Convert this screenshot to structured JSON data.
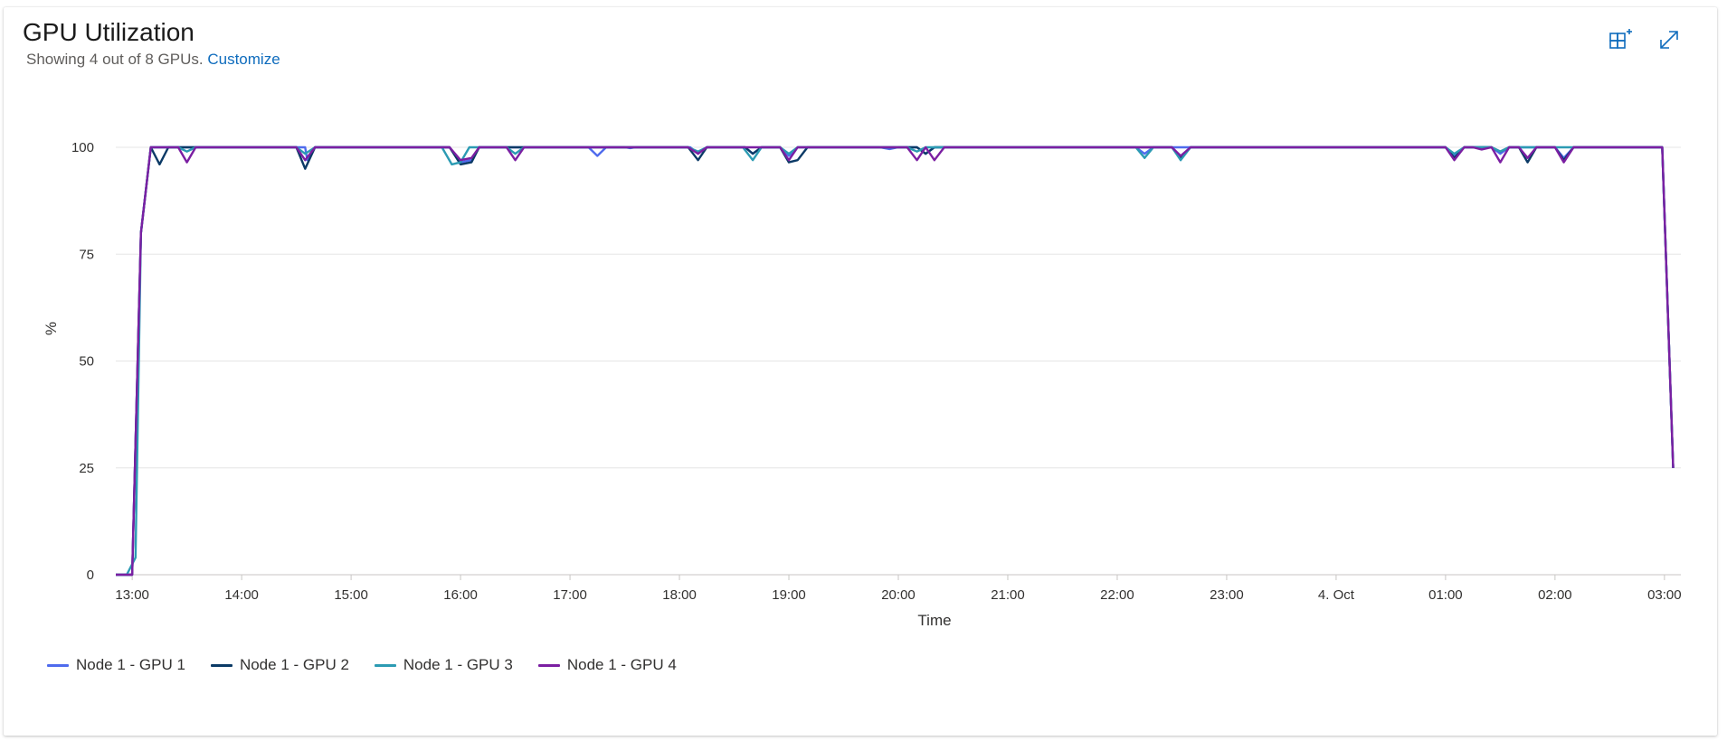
{
  "header": {
    "title": "GPU Utilization",
    "subtitle": "Showing 4 out of 8 GPUs.",
    "customize_label": "Customize",
    "icons": [
      "pin-to-dashboard-icon",
      "expand-icon"
    ]
  },
  "chart_data": {
    "type": "line",
    "xlabel": "Time",
    "ylabel": "%",
    "ylim": [
      0,
      100
    ],
    "yticks": [
      0,
      25,
      50,
      75,
      100
    ],
    "xlim": [
      12.85,
      27.15
    ],
    "xticks": [
      {
        "value": 13,
        "label": "13:00"
      },
      {
        "value": 14,
        "label": "14:00"
      },
      {
        "value": 15,
        "label": "15:00"
      },
      {
        "value": 16,
        "label": "16:00"
      },
      {
        "value": 17,
        "label": "17:00"
      },
      {
        "value": 18,
        "label": "18:00"
      },
      {
        "value": 19,
        "label": "19:00"
      },
      {
        "value": 20,
        "label": "20:00"
      },
      {
        "value": 21,
        "label": "21:00"
      },
      {
        "value": 22,
        "label": "22:00"
      },
      {
        "value": 23,
        "label": "23:00"
      },
      {
        "value": 24,
        "label": "4. Oct"
      },
      {
        "value": 25,
        "label": "01:00"
      },
      {
        "value": 26,
        "label": "02:00"
      },
      {
        "value": 27,
        "label": "03:00"
      }
    ],
    "grid": true,
    "legend_position": "bottom-left",
    "series": [
      {
        "name": "Node 1 - GPU 1",
        "color": "#4f6bed",
        "points": [
          [
            12.85,
            0
          ],
          [
            13.0,
            0
          ],
          [
            13.08,
            80
          ],
          [
            13.17,
            100
          ],
          [
            14.58,
            100
          ],
          [
            14.6,
            97
          ],
          [
            14.67,
            100
          ],
          [
            15.9,
            100
          ],
          [
            16.0,
            96.5
          ],
          [
            16.1,
            97
          ],
          [
            16.17,
            100
          ],
          [
            17.17,
            100
          ],
          [
            17.25,
            98
          ],
          [
            17.33,
            100
          ],
          [
            17.5,
            100
          ],
          [
            17.55,
            99.8
          ],
          [
            17.6,
            100
          ],
          [
            18.1,
            100
          ],
          [
            18.17,
            98.5
          ],
          [
            18.25,
            100
          ],
          [
            18.6,
            100
          ],
          [
            18.67,
            98.5
          ],
          [
            18.75,
            100
          ],
          [
            18.92,
            100
          ],
          [
            19.0,
            98
          ],
          [
            19.08,
            100
          ],
          [
            19.83,
            100
          ],
          [
            19.92,
            99.6
          ],
          [
            20.0,
            100
          ],
          [
            20.17,
            100
          ],
          [
            20.25,
            98.5
          ],
          [
            20.33,
            100
          ],
          [
            22.17,
            100
          ],
          [
            22.25,
            98.5
          ],
          [
            22.33,
            100
          ],
          [
            25.0,
            100
          ],
          [
            25.08,
            98
          ],
          [
            25.17,
            100
          ],
          [
            25.42,
            100
          ],
          [
            25.5,
            98.5
          ],
          [
            25.58,
            100
          ],
          [
            26.0,
            100
          ],
          [
            26.08,
            97.5
          ],
          [
            26.17,
            100
          ],
          [
            26.98,
            100
          ],
          [
            27.08,
            25
          ]
        ]
      },
      {
        "name": "Node 1 - GPU 2",
        "color": "#0b3a66",
        "points": [
          [
            12.85,
            0
          ],
          [
            13.0,
            0
          ],
          [
            13.08,
            80
          ],
          [
            13.17,
            100
          ],
          [
            13.25,
            96
          ],
          [
            13.33,
            100
          ],
          [
            14.5,
            100
          ],
          [
            14.58,
            95
          ],
          [
            14.67,
            100
          ],
          [
            15.9,
            100
          ],
          [
            16.0,
            96
          ],
          [
            16.1,
            96.5
          ],
          [
            16.17,
            100
          ],
          [
            18.08,
            100
          ],
          [
            18.17,
            97
          ],
          [
            18.25,
            100
          ],
          [
            18.6,
            100
          ],
          [
            18.67,
            98.5
          ],
          [
            18.75,
            100
          ],
          [
            18.92,
            100
          ],
          [
            19.0,
            96.5
          ],
          [
            19.08,
            97
          ],
          [
            19.17,
            100
          ],
          [
            20.17,
            100
          ],
          [
            20.25,
            98.5
          ],
          [
            20.33,
            100
          ],
          [
            22.5,
            100
          ],
          [
            22.58,
            97.5
          ],
          [
            22.67,
            100
          ],
          [
            25.0,
            100
          ],
          [
            25.08,
            97.5
          ],
          [
            25.17,
            100
          ],
          [
            25.42,
            100
          ],
          [
            25.5,
            99
          ],
          [
            25.58,
            100
          ],
          [
            25.67,
            100
          ],
          [
            25.75,
            96.5
          ],
          [
            25.83,
            100
          ],
          [
            26.0,
            100
          ],
          [
            26.08,
            97
          ],
          [
            26.17,
            100
          ],
          [
            26.98,
            100
          ],
          [
            27.08,
            25
          ]
        ]
      },
      {
        "name": "Node 1 - GPU 3",
        "color": "#2c9bb3",
        "points": [
          [
            12.85,
            0
          ],
          [
            12.95,
            0
          ],
          [
            13.03,
            4
          ],
          [
            13.08,
            80
          ],
          [
            13.17,
            100
          ],
          [
            13.42,
            100
          ],
          [
            13.5,
            99
          ],
          [
            13.58,
            100
          ],
          [
            14.5,
            100
          ],
          [
            14.58,
            98.5
          ],
          [
            14.67,
            100
          ],
          [
            15.83,
            100
          ],
          [
            15.92,
            96
          ],
          [
            16.0,
            96.5
          ],
          [
            16.08,
            100
          ],
          [
            16.42,
            100
          ],
          [
            16.5,
            98.5
          ],
          [
            16.58,
            100
          ],
          [
            18.08,
            100
          ],
          [
            18.17,
            99
          ],
          [
            18.25,
            100
          ],
          [
            18.58,
            100
          ],
          [
            18.67,
            97
          ],
          [
            18.75,
            100
          ],
          [
            18.92,
            100
          ],
          [
            19.0,
            98.5
          ],
          [
            19.08,
            100
          ],
          [
            20.08,
            100
          ],
          [
            20.17,
            99
          ],
          [
            20.25,
            100
          ],
          [
            22.17,
            100
          ],
          [
            22.25,
            97.5
          ],
          [
            22.33,
            100
          ],
          [
            22.5,
            100
          ],
          [
            22.58,
            97
          ],
          [
            22.67,
            100
          ],
          [
            25.0,
            100
          ],
          [
            25.08,
            98.5
          ],
          [
            25.17,
            100
          ],
          [
            25.42,
            100
          ],
          [
            25.5,
            99
          ],
          [
            25.58,
            100
          ],
          [
            26.98,
            100
          ],
          [
            27.08,
            25
          ]
        ]
      },
      {
        "name": "Node 1 - GPU 4",
        "color": "#7b1fa2",
        "points": [
          [
            12.85,
            0
          ],
          [
            13.0,
            0
          ],
          [
            13.08,
            80
          ],
          [
            13.17,
            100
          ],
          [
            13.42,
            100
          ],
          [
            13.5,
            96.5
          ],
          [
            13.58,
            100
          ],
          [
            14.5,
            100
          ],
          [
            14.58,
            97
          ],
          [
            14.67,
            100
          ],
          [
            15.9,
            100
          ],
          [
            16.0,
            97
          ],
          [
            16.1,
            97.5
          ],
          [
            16.17,
            100
          ],
          [
            16.42,
            100
          ],
          [
            16.5,
            97
          ],
          [
            16.58,
            100
          ],
          [
            18.08,
            100
          ],
          [
            18.17,
            98.5
          ],
          [
            18.25,
            100
          ],
          [
            18.92,
            100
          ],
          [
            19.0,
            97
          ],
          [
            19.08,
            100
          ],
          [
            20.08,
            100
          ],
          [
            20.17,
            97
          ],
          [
            20.25,
            100
          ],
          [
            20.25,
            100
          ],
          [
            20.33,
            97
          ],
          [
            20.42,
            100
          ],
          [
            22.5,
            100
          ],
          [
            22.58,
            98
          ],
          [
            22.67,
            100
          ],
          [
            25.0,
            100
          ],
          [
            25.08,
            97
          ],
          [
            25.17,
            100
          ],
          [
            25.25,
            100
          ],
          [
            25.33,
            99.5
          ],
          [
            25.42,
            100
          ],
          [
            25.42,
            100
          ],
          [
            25.5,
            96.5
          ],
          [
            25.58,
            100
          ],
          [
            25.67,
            100
          ],
          [
            25.75,
            97.5
          ],
          [
            25.83,
            100
          ],
          [
            26.0,
            100
          ],
          [
            26.08,
            96.5
          ],
          [
            26.17,
            100
          ],
          [
            26.98,
            100
          ],
          [
            27.08,
            25
          ]
        ]
      }
    ]
  }
}
